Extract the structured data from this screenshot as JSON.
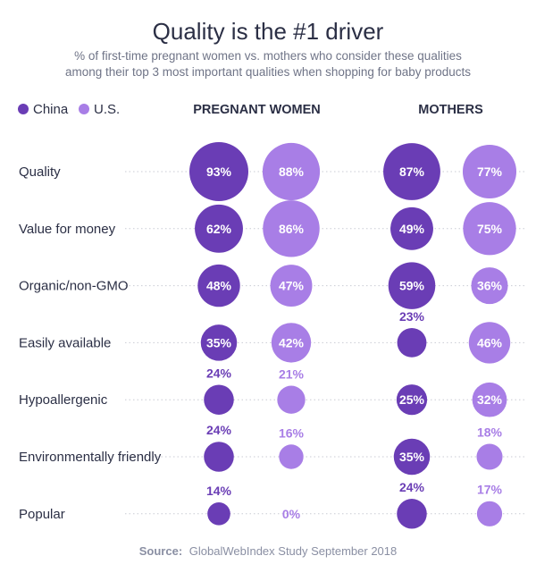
{
  "title": "Quality is the #1 driver",
  "subtitle_line1": "% of first-time pregnant women vs. mothers who consider these qualities",
  "subtitle_line2": "among their top 3 most important qualities when shopping for baby products",
  "source_label": "Source:",
  "source_text": "GlobalWebIndex Study September 2018",
  "colors": {
    "china": "#6a3db5",
    "us": "#a87ee6",
    "text": "#2b2f45",
    "subtitle": "#6f7487",
    "source": "#8a8fa3",
    "gridline": "#c9cbd4"
  },
  "chart_data": {
    "type": "bubble",
    "title": "Quality is the #1 driver",
    "legend": [
      "China",
      "U.S."
    ],
    "legend_placement": "top-left",
    "groups": [
      "PREGNANT WOMEN",
      "MOTHERS"
    ],
    "categories": [
      "Quality",
      "Value for money",
      "Organic/non-GMO",
      "Easily available",
      "Hypoallergenic",
      "Environmentally friendly",
      "Popular"
    ],
    "series": [
      {
        "group": "PREGNANT WOMEN",
        "name": "China",
        "values": [
          93,
          62,
          48,
          35,
          24,
          24,
          14
        ]
      },
      {
        "group": "PREGNANT WOMEN",
        "name": "U.S.",
        "values": [
          88,
          86,
          47,
          42,
          21,
          16,
          0
        ]
      },
      {
        "group": "MOTHERS",
        "name": "China",
        "values": [
          87,
          49,
          59,
          23,
          25,
          35,
          24
        ]
      },
      {
        "group": "MOTHERS",
        "name": "U.S.",
        "values": [
          77,
          75,
          36,
          46,
          32,
          18,
          17
        ]
      }
    ],
    "unit": "%"
  }
}
